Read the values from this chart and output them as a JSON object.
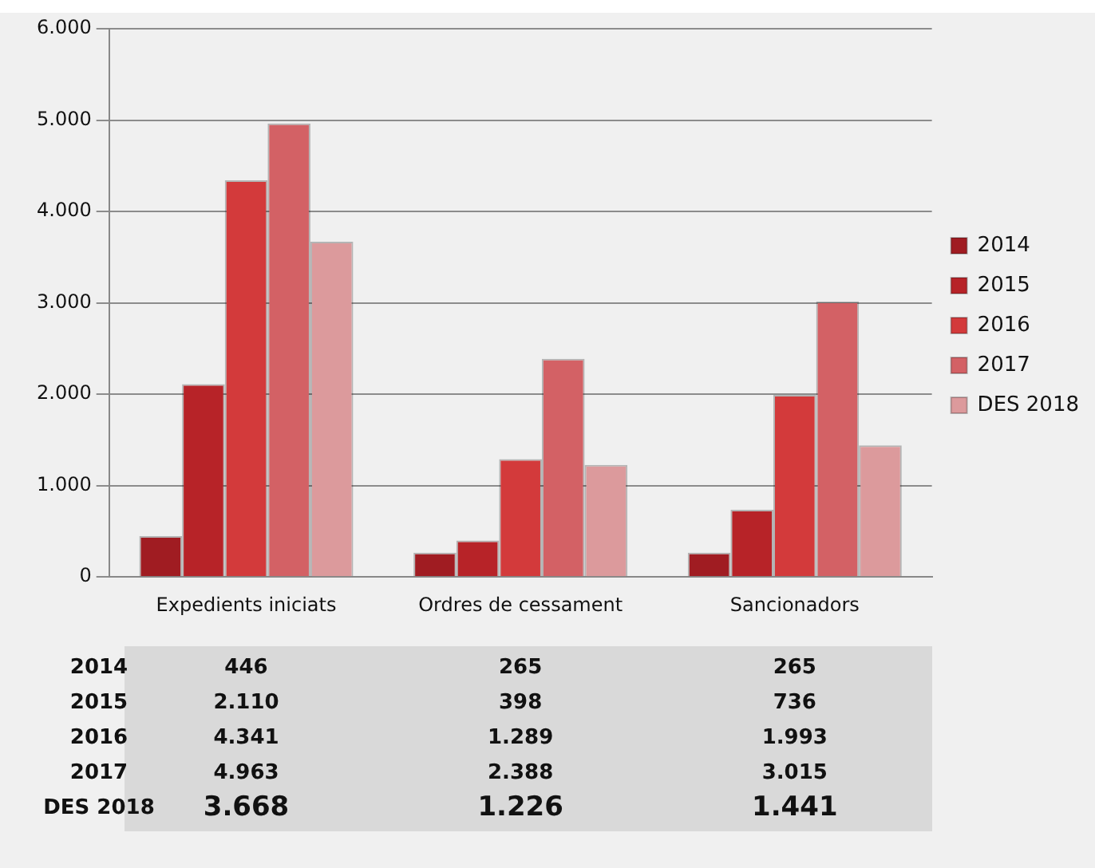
{
  "chart_data": {
    "type": "bar",
    "categories": [
      "Expedients iniciats",
      "Ordres de cessament",
      "Sancionadors"
    ],
    "series": [
      {
        "name": "2014",
        "color": "#a01c22",
        "values": [
          446,
          265,
          265
        ],
        "value_labels": [
          "446",
          "265",
          "265"
        ]
      },
      {
        "name": "2015",
        "color": "#b72328",
        "values": [
          2110,
          398,
          736
        ],
        "value_labels": [
          "2.110",
          "398",
          "736"
        ]
      },
      {
        "name": "2016",
        "color": "#d33a3b",
        "values": [
          4341,
          1289,
          1993
        ],
        "value_labels": [
          "4.341",
          "1.289",
          "1.993"
        ]
      },
      {
        "name": "2017",
        "color": "#d36165",
        "values": [
          4963,
          2388,
          3015
        ],
        "value_labels": [
          "4.963",
          "2.388",
          "3.015"
        ]
      },
      {
        "name": "DES 2018",
        "color": "#dc9a9c",
        "values": [
          3668,
          1226,
          1441
        ],
        "value_labels": [
          "3.668",
          "1.226",
          "1.441"
        ]
      }
    ],
    "ylim": [
      0,
      6000
    ],
    "yticks": [
      {
        "value": 0,
        "label": "0"
      },
      {
        "value": 1000,
        "label": "1.000"
      },
      {
        "value": 2000,
        "label": "2.000"
      },
      {
        "value": 3000,
        "label": "3.000"
      },
      {
        "value": 4000,
        "label": "4.000"
      },
      {
        "value": 5000,
        "label": "5.000"
      },
      {
        "value": 6000,
        "label": "6.000"
      }
    ],
    "grid": "y",
    "legend": "right"
  }
}
